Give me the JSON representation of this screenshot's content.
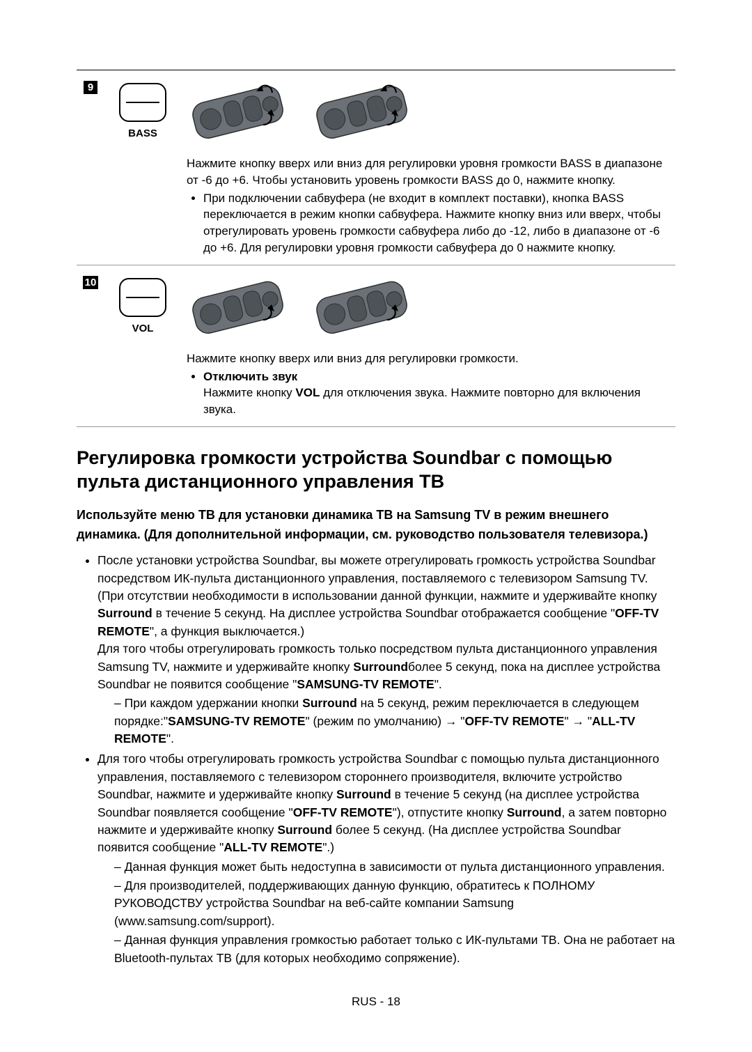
{
  "rows": [
    {
      "num": "9",
      "label": "BASS",
      "showArrows": true,
      "desc_main": "Нажмите кнопку вверх или вниз для регулировки уровня громкости BASS в диапазоне от -6 до +6. Чтобы установить уровень громкости BASS до 0, нажмите кнопку.",
      "bullet": "При подключении сабвуфера (не входит в комплект поставки), кнопка BASS переключается в режим кнопки сабвуфера. Нажмите кнопку вниз или вверх, чтобы отрегулировать уровень громкости сабвуфера либо до -12, либо в диапазоне от -6 до +6. Для регулировки уровня громкости сабвуфера до 0 нажмите кнопку."
    },
    {
      "num": "10",
      "label": "VOL",
      "showArrows": false,
      "desc_main": "Нажмите кнопку вверх или вниз для регулировки громкости.",
      "bullet_title": "Отключить звук",
      "bullet_body_pre": "Нажмите кнопку ",
      "bullet_body_bold": "VOL",
      "bullet_body_post": " для отключения звука. Нажмите повторно для включения звука."
    }
  ],
  "section_title": "Регулировка громкости устройства Soundbar с помощью пульта дистанционного управления ТВ",
  "subheading": "Используйте меню ТВ для установки динамика ТВ на Samsung TV в режим внешнего динамика. (Для дополнительной информации, см. руководство пользователя телевизора.)",
  "para1": {
    "t1": "После установки устройства Soundbar, вы можете отрегулировать громкость устройства Soundbar посредством ИК-пульта дистанционного управления, поставляемого с телевизором Samsung TV. (При отсутствии необходимости в использовании данной функции, нажмите и удерживайте кнопку ",
    "b1": "Surround",
    "t2": " в течение 5 секунд. На дисплее устройства Soundbar отображается сообщение \"",
    "b2": "OFF-TV REMOTE",
    "t3": "\", а функция выключается.)",
    "t4": "Для того чтобы отрегулировать громкость только посредством пульта дистанционного управления Samsung TV, нажмите и удерживайте кнопку ",
    "b3": "Surround",
    "t5": "более 5 секунд, пока на дисплее устройства Soundbar не появится сообщение \"",
    "b4": "SAMSUNG-TV REMOTE",
    "t6": "\"."
  },
  "para1_dash": {
    "t1": "При каждом удержании кнопки ",
    "b1": "Surround",
    "t2": " на 5 секунд, режим переключается в следующем порядке:\"",
    "b2": "SAMSUNG-TV REMOTE",
    "t3": "\" (режим по умолчанию) → \"",
    "b3": "OFF-TV REMOTE",
    "t4": "\" → \"",
    "b4": "ALL-TV REMOTE",
    "t5": "\"."
  },
  "para2": {
    "t1": "Для того чтобы отрегулировать громкость устройства Soundbar с помощью пульта дистанционного управления, поставляемого с телевизором стороннего производителя, включите устройство Soundbar, нажмите и удерживайте кнопку ",
    "b1": "Surround",
    "t2": " в течение 5 секунд (на дисплее устройства Soundbar появляется сообщение \"",
    "b2": "OFF-TV REMOTE",
    "t3": "\"), отпустите кнопку ",
    "b3": "Surround",
    "t4": ", а затем повторно нажмите и удерживайте кнопку ",
    "b4": "Surround",
    "t5": " более 5 секунд. (На дисплее устройства Soundbar появится сообщение \"",
    "b5": "ALL-TV REMOTE",
    "t6": "\".)"
  },
  "para2_dash1": "Данная функция может быть недоступна в зависимости от пульта дистанционного управления.",
  "para2_dash2": "Для производителей, поддерживающих данную функцию, обратитесь к ПОЛНОМУ РУКОВОДСТВУ устройства Soundbar на веб-сайте компании Samsung (www.samsung.com/support).",
  "para2_dash3": "Данная функция управления громкостью работает только с ИК-пультами ТВ. Она не работает на Bluetooth-пультах ТВ (для которых необходимо сопряжение).",
  "footer": "RUS - 18",
  "colors": {
    "remote_fill": "#6b7176",
    "remote_stroke": "#2d2f31",
    "button_fill": "#4e5357"
  }
}
